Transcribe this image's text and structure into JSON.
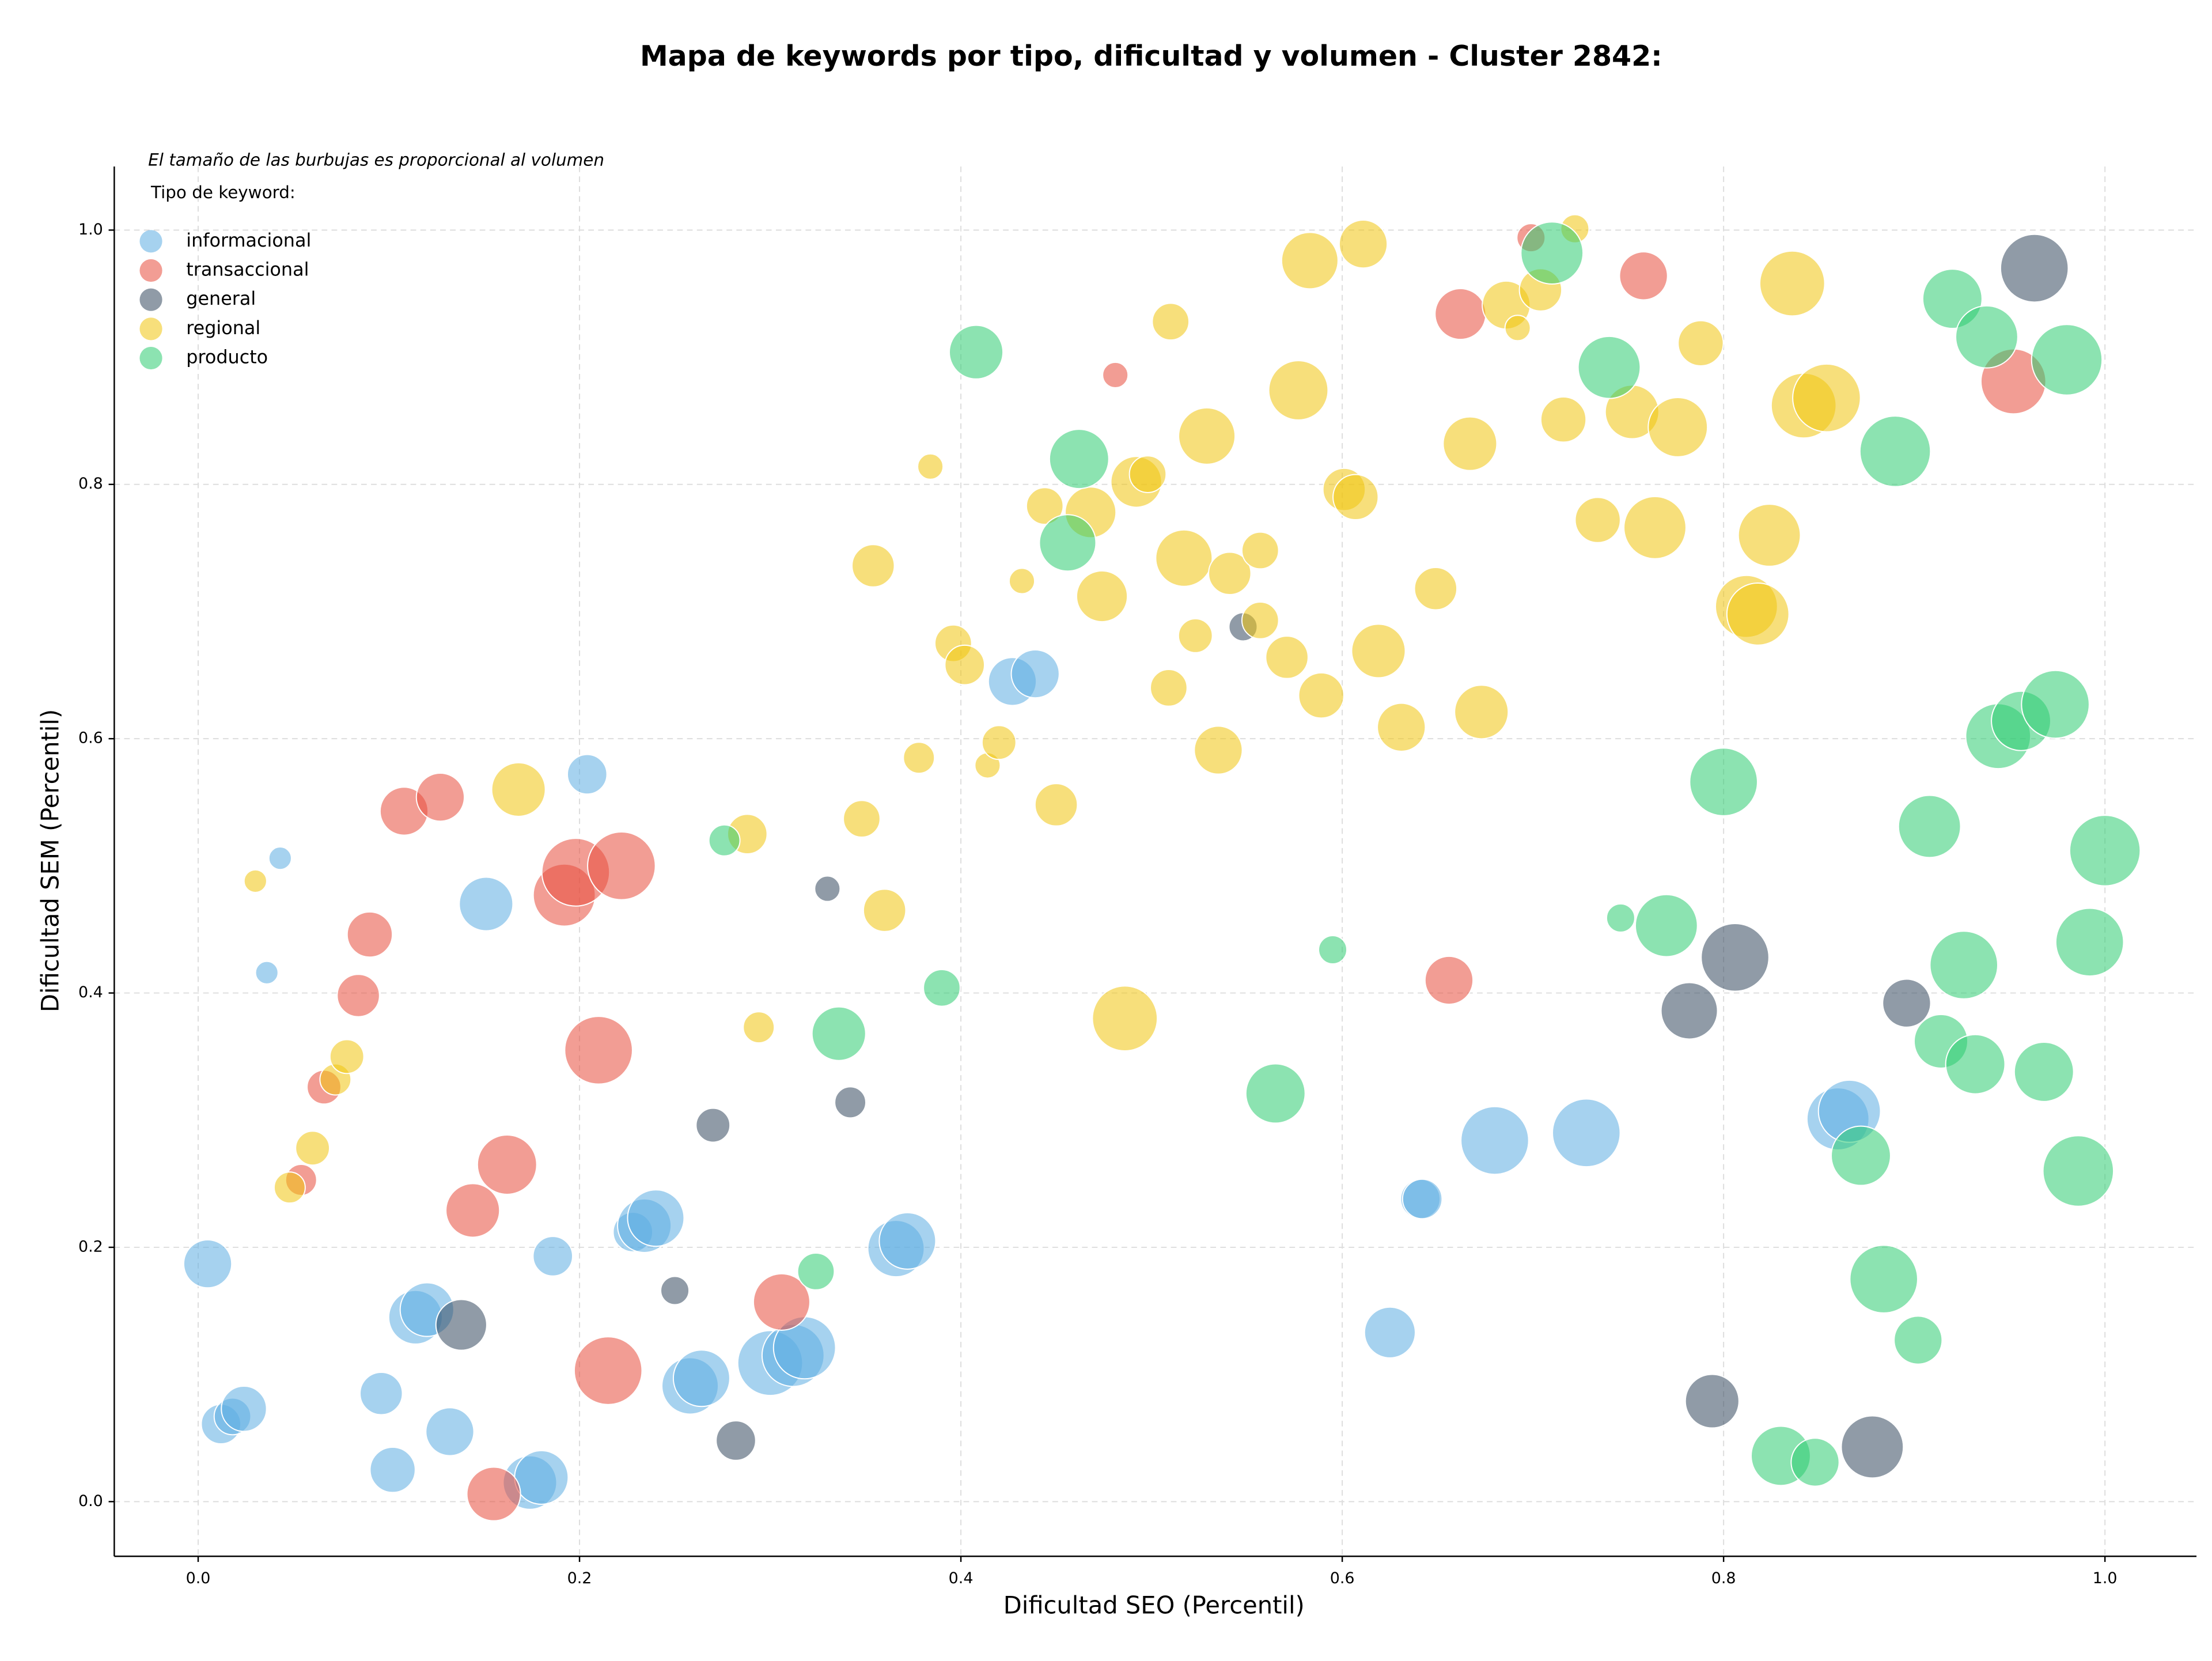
{
  "chart_data": {
    "type": "bubble",
    "title": "Mapa de keywords por tipo, dificultad y volumen - Cluster 2842:",
    "note": "El tamaño de las burbujas es proporcional al volumen",
    "legend_title": "Tipo de keyword:",
    "legend_position": "upper left",
    "x_label": "Dificultad SEO (Percentil)",
    "y_label": "Dificultad SEM (Percentil)",
    "xlim": [
      -0.044,
      1.048
    ],
    "ylim": [
      -0.043,
      1.05
    ],
    "xticks": [
      {
        "value": 0,
        "label": "0.0"
      },
      0.2,
      0.4,
      0.6,
      0.8,
      {
        "value": 1,
        "label": "1.0"
      }
    ],
    "yticks": [
      {
        "value": 0,
        "label": "0.0"
      },
      0.2,
      0.4,
      0.6,
      0.8,
      {
        "value": 1,
        "label": "1.0"
      }
    ],
    "grid": true,
    "series": [
      {
        "name": "informacional",
        "color": "#5dade2",
        "x": [
          0.043,
          0.036,
          0.204,
          0.151,
          0.005,
          0.012,
          0.018,
          0.024,
          0.096,
          0.102,
          0.114,
          0.12,
          0.132,
          0.174,
          0.18,
          0.186,
          0.228,
          0.234,
          0.24,
          0.258,
          0.264,
          0.3,
          0.312,
          0.318,
          0.366,
          0.372,
          0.427,
          0.439,
          0.625,
          0.641,
          0.642,
          0.68,
          0.728,
          0.86,
          0.866
        ],
        "values": [
          0.506,
          0.416,
          0.572,
          0.47,
          0.187,
          0.061,
          0.067,
          0.073,
          0.085,
          0.025,
          0.145,
          0.151,
          0.055,
          0.015,
          0.019,
          0.193,
          0.212,
          0.217,
          0.223,
          0.091,
          0.097,
          0.109,
          0.115,
          0.121,
          0.199,
          0.205,
          0.645,
          0.651,
          0.133,
          0.238,
          0.238,
          0.284,
          0.29,
          0.301,
          0.307
        ],
        "sizes": [
          64,
          64,
          196,
          361,
          289,
          196,
          169,
          256,
          225,
          256,
          361,
          361,
          289,
          361,
          361,
          196,
          196,
          361,
          400,
          400,
          400,
          529,
          484,
          484,
          400,
          400,
          289,
          289,
          324,
          196,
          196,
          576,
          576,
          484,
          484
        ]
      },
      {
        "name": "transaccional",
        "color": "#e74c3c",
        "x": [
          0.108,
          0.127,
          0.09,
          0.084,
          0.066,
          0.054,
          0.192,
          0.198,
          0.222,
          0.21,
          0.162,
          0.144,
          0.215,
          0.155,
          0.306,
          0.481,
          0.662,
          0.699,
          0.758,
          0.656,
          0.952
        ],
        "values": [
          0.543,
          0.554,
          0.446,
          0.398,
          0.326,
          0.253,
          0.477,
          0.495,
          0.5,
          0.355,
          0.265,
          0.229,
          0.103,
          0.006,
          0.157,
          0.886,
          0.934,
          0.994,
          0.964,
          0.41,
          0.881
        ],
        "sizes": [
          289,
          289,
          256,
          225,
          144,
          121,
          484,
          576,
          576,
          576,
          441,
          361,
          576,
          361,
          400,
          81,
          324,
          100,
          289,
          289,
          529
        ]
      },
      {
        "name": "general",
        "color": "#34495e",
        "x": [
          0.138,
          0.25,
          0.27,
          0.282,
          0.33,
          0.342,
          0.548,
          0.782,
          0.806,
          0.794,
          0.878,
          0.896,
          0.963
        ],
        "values": [
          0.139,
          0.166,
          0.296,
          0.048,
          0.482,
          0.314,
          0.688,
          0.386,
          0.428,
          0.079,
          0.043,
          0.392,
          0.97
        ],
        "sizes": [
          324,
          100,
          144,
          196,
          81,
          121,
          100,
          400,
          576,
          361,
          484,
          289,
          576
        ]
      },
      {
        "name": "regional",
        "color": "#f1c40f",
        "x": [
          0.03,
          0.048,
          0.06,
          0.072,
          0.078,
          0.168,
          0.288,
          0.294,
          0.348,
          0.354,
          0.36,
          0.378,
          0.384,
          0.396,
          0.402,
          0.414,
          0.42,
          0.432,
          0.444,
          0.45,
          0.468,
          0.474,
          0.486,
          0.492,
          0.498,
          0.51,
          0.509,
          0.517,
          0.523,
          0.529,
          0.535,
          0.541,
          0.557,
          0.557,
          0.571,
          0.577,
          0.583,
          0.589,
          0.601,
          0.607,
          0.611,
          0.619,
          0.631,
          0.649,
          0.667,
          0.673,
          0.686,
          0.692,
          0.704,
          0.716,
          0.722,
          0.734,
          0.752,
          0.764,
          0.776,
          0.788,
          0.812,
          0.818,
          0.824,
          0.836,
          0.842,
          0.854
        ],
        "values": [
          0.488,
          0.247,
          0.278,
          0.332,
          0.35,
          0.56,
          0.525,
          0.373,
          0.537,
          0.736,
          0.465,
          0.585,
          0.814,
          0.675,
          0.658,
          0.579,
          0.597,
          0.724,
          0.783,
          0.548,
          0.778,
          0.712,
          0.38,
          0.802,
          0.808,
          0.928,
          0.64,
          0.742,
          0.681,
          0.838,
          0.591,
          0.73,
          0.748,
          0.693,
          0.664,
          0.874,
          0.976,
          0.634,
          0.796,
          0.79,
          0.989,
          0.669,
          0.609,
          0.718,
          0.832,
          0.621,
          0.941,
          0.923,
          0.953,
          0.851,
          1.001,
          0.772,
          0.857,
          0.766,
          0.845,
          0.911,
          0.704,
          0.698,
          0.76,
          0.958,
          0.862,
          0.868
        ],
        "sizes": [
          64,
          121,
          144,
          121,
          144,
          361,
          196,
          121,
          169,
          225,
          225,
          121,
          81,
          169,
          196,
          81,
          144,
          81,
          169,
          225,
          324,
          324,
          529,
          324,
          169,
          169,
          169,
          400,
          144,
          400,
          289,
          225,
          169,
          169,
          225,
          441,
          400,
          256,
          225,
          256,
          289,
          361,
          289,
          225,
          361,
          361,
          289,
          81,
          225,
          256,
          100,
          256,
          361,
          484,
          441,
          256,
          484,
          484,
          484,
          529,
          529,
          576
        ]
      },
      {
        "name": "producto",
        "color": "#2ecc71",
        "x": [
          0.276,
          0.324,
          0.336,
          0.39,
          0.408,
          0.456,
          0.462,
          0.565,
          0.595,
          0.71,
          0.74,
          0.746,
          0.77,
          0.8,
          0.83,
          0.848,
          0.872,
          0.884,
          0.89,
          0.902,
          0.908,
          0.914,
          0.92,
          0.926,
          0.932,
          0.938,
          0.944,
          0.956,
          0.968,
          0.974,
          0.98,
          0.986,
          0.992,
          1.0
        ],
        "values": [
          0.52,
          0.181,
          0.368,
          0.404,
          0.904,
          0.754,
          0.82,
          0.321,
          0.434,
          0.982,
          0.892,
          0.459,
          0.453,
          0.566,
          0.036,
          0.031,
          0.272,
          0.175,
          0.826,
          0.127,
          0.531,
          0.362,
          0.946,
          0.422,
          0.344,
          0.916,
          0.602,
          0.614,
          0.338,
          0.627,
          0.898,
          0.26,
          0.44,
          0.512
        ],
        "sizes": [
          121,
          169,
          361,
          169,
          361,
          400,
          441,
          441,
          100,
          484,
          484,
          100,
          484,
          576,
          441,
          289,
          441,
          576,
          625,
          289,
          484,
          361,
          441,
          576,
          441,
          484,
          529,
          441,
          441,
          576,
          625,
          625,
          576,
          625
        ]
      }
    ]
  }
}
